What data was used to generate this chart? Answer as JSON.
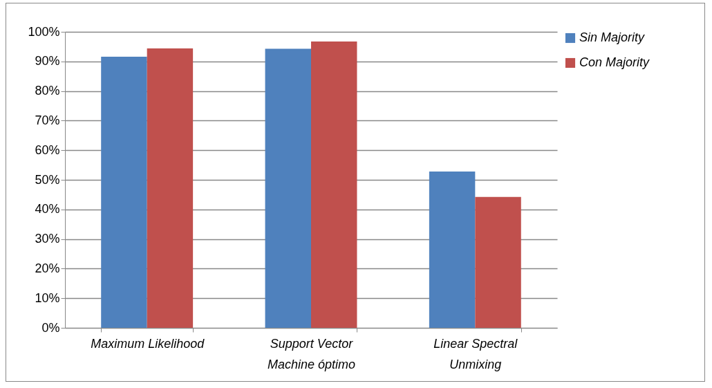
{
  "chart_data": {
    "type": "bar",
    "categories": [
      "Maximum Likelihood",
      "Support Vector Machine óptimo",
      "Linear Spectral Unmixing"
    ],
    "series": [
      {
        "name": "Sin Majority",
        "color": "#4f81bd",
        "values": [
          91.6,
          94.3,
          52.8
        ]
      },
      {
        "name": "Con Majority",
        "color": "#c0504d",
        "values": [
          94.4,
          96.7,
          44.2
        ]
      }
    ],
    "ylim": [
      0,
      100
    ],
    "yticks": [
      {
        "value": 0,
        "label": "0%"
      },
      {
        "value": 10,
        "label": "10%"
      },
      {
        "value": 20,
        "label": "20%"
      },
      {
        "value": 30,
        "label": "30%"
      },
      {
        "value": 40,
        "label": "40%"
      },
      {
        "value": 50,
        "label": "50%"
      },
      {
        "value": 60,
        "label": "60%"
      },
      {
        "value": 70,
        "label": "70%"
      },
      {
        "value": 80,
        "label": "80%"
      },
      {
        "value": 90,
        "label": "90%"
      },
      {
        "value": 100,
        "label": "100%"
      }
    ],
    "grid": "y",
    "legend": "right"
  }
}
